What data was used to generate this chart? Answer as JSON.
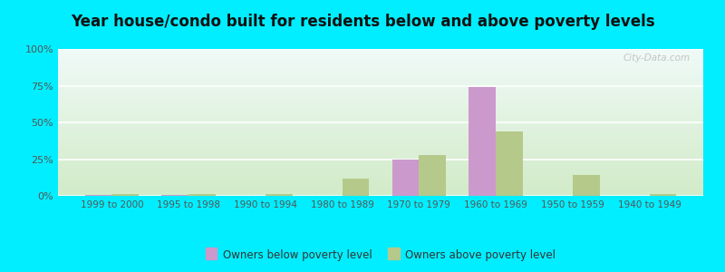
{
  "title": "Year house/condo built for residents below and above poverty levels",
  "categories": [
    "1999 to 2000",
    "1995 to 1998",
    "1990 to 1994",
    "1980 to 1989",
    "1970 to 1979",
    "1960 to 1969",
    "1950 to 1959",
    "1940 to 1949"
  ],
  "below_poverty": [
    0.5,
    0.5,
    0.0,
    0.0,
    25.0,
    74.0,
    0.0,
    0.0
  ],
  "above_poverty": [
    1.0,
    1.0,
    1.0,
    12.0,
    28.0,
    44.0,
    14.0,
    1.0
  ],
  "below_color": "#cc99cc",
  "above_color": "#b5c98a",
  "ylim": [
    0,
    100
  ],
  "yticks": [
    0,
    25,
    50,
    75,
    100
  ],
  "ytick_labels": [
    "0%",
    "25%",
    "50%",
    "75%",
    "100%"
  ],
  "legend_below": "Owners below poverty level",
  "legend_above": "Owners above poverty level",
  "outer_bg": "#00eeff",
  "title_fontsize": 12,
  "bar_width": 0.35,
  "bg_top": "#f0faf8",
  "bg_bottom": "#d8efd0"
}
